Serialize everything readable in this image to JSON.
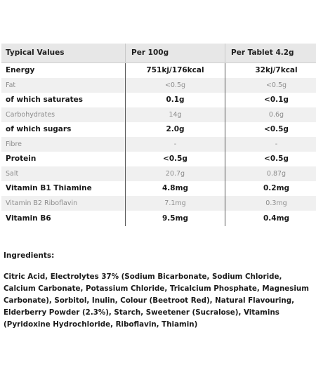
{
  "table": {
    "headers": [
      "Typical Values",
      "Per 100g",
      "Per Tablet 4.2g"
    ],
    "rows": [
      {
        "name": "Energy",
        "per100g": "751kj/176kcal",
        "perTablet": "32kj/7kcal",
        "style": "bold",
        "shaded": false
      },
      {
        "name": "Fat",
        "per100g": "<0.5g",
        "perTablet": "<0.5g",
        "style": "light",
        "shaded": true
      },
      {
        "name": "of which saturates",
        "per100g": "0.1g",
        "perTablet": "<0.1g",
        "style": "bold",
        "shaded": false
      },
      {
        "name": "Carbohydrates",
        "per100g": "14g",
        "perTablet": "0.6g",
        "style": "light",
        "shaded": true
      },
      {
        "name": "of which sugars",
        "per100g": "2.0g",
        "perTablet": "<0.5g",
        "style": "bold",
        "shaded": false
      },
      {
        "name": "Fibre",
        "per100g": "-",
        "perTablet": "-",
        "style": "light",
        "shaded": true
      },
      {
        "name": "Protein",
        "per100g": "<0.5g",
        "perTablet": "<0.5g",
        "style": "bold",
        "shaded": false
      },
      {
        "name": "Salt",
        "per100g": "20.7g",
        "perTablet": "0.87g",
        "style": "light",
        "shaded": true
      },
      {
        "name": "Vitamin B1 Thiamine",
        "per100g": "4.8mg",
        "perTablet": "0.2mg",
        "style": "bold",
        "shaded": false
      },
      {
        "name": "Vitamin B2 Riboflavin",
        "per100g": "7.1mg",
        "perTablet": "0.3mg",
        "style": "light",
        "shaded": true
      },
      {
        "name": "Vitamin B6",
        "per100g": "9.5mg",
        "perTablet": "0.4mg",
        "style": "bold",
        "shaded": false
      }
    ]
  },
  "ingredients": {
    "heading": "Ingredients:",
    "text": "Citric Acid, Electrolytes 37% (Sodium Bicarbonate, Sodium Chloride, Calcium Carbonate, Potassium Chloride, Tricalcium Phosphate, Magnesium Carbonate), Sorbitol, Inulin, Colour (Beetroot Red), Natural Flavouring, Elderberry Powder (2.3%), Starch, Sweetener (Sucralose), Vitamins (Pyridoxine Hydrochloride, Riboflavin, Thiamin)"
  }
}
